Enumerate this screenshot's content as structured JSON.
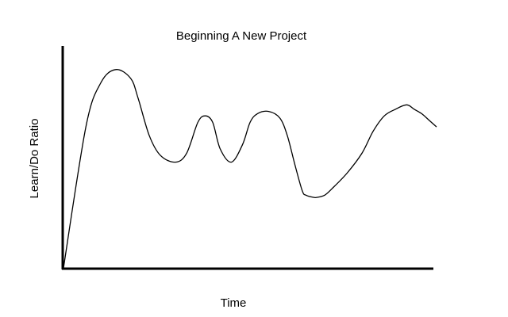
{
  "chart_data": {
    "type": "line",
    "title": "Beginning A New Project",
    "xlabel": "Time",
    "ylabel": "Learn/Do Ratio",
    "grid": false,
    "legend": "none",
    "xlim": [
      0,
      100
    ],
    "ylim": [
      0,
      100
    ],
    "series": [
      {
        "line_color": "#000000",
        "x": [
          0,
          6,
          10,
          14,
          18,
          20,
          23,
          26,
          30,
          33,
          36,
          38,
          40,
          42,
          45,
          48,
          50,
          52,
          55,
          58,
          60,
          62,
          64,
          65,
          67,
          68,
          70,
          72,
          76,
          80,
          83,
          86,
          89,
          92,
          94,
          96,
          98,
          100
        ],
        "y": [
          0,
          64,
          84,
          90,
          86,
          77,
          60,
          51,
          48,
          52,
          66,
          69,
          66,
          54,
          48,
          56,
          66,
          70,
          71,
          68,
          60,
          47,
          35,
          33,
          32,
          32,
          33,
          36,
          43,
          52,
          62,
          69,
          72,
          74,
          72,
          70,
          67,
          64
        ]
      }
    ]
  }
}
